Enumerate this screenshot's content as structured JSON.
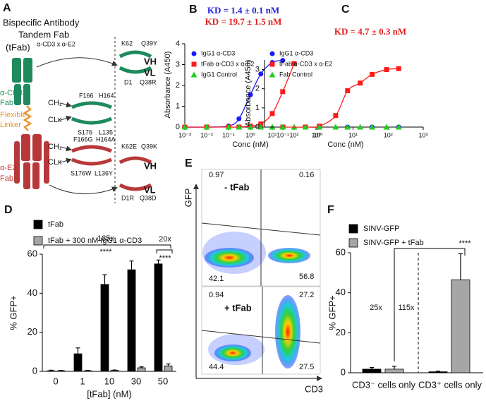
{
  "figure_a": {
    "panel": "A",
    "title": [
      "Bispecific Antibody",
      "Tandem Fab",
      "(tFab)"
    ],
    "title_superscript": "α-CD3 x α-E2",
    "cd3_fab": [
      "α-CD3",
      "Fab"
    ],
    "linker": [
      "Flexible",
      "Linker"
    ],
    "e2_fab": [
      "α-E2",
      "Fab"
    ],
    "wt_constant": {
      "ch1": "CH₁",
      "cl": "CLκ",
      "residues": [
        "F166",
        "H164",
        "S176",
        "L135"
      ]
    },
    "mut_constant": {
      "ch1": "CH₁",
      "cl": "CLκ",
      "residues": [
        "F166G",
        "H164A",
        "S176W",
        "L136Y"
      ]
    },
    "wt_variable": {
      "vh": "VH",
      "vl": "VL",
      "residues": [
        "K62",
        "Q39Y",
        "D1",
        "Q38R"
      ]
    },
    "mut_variable": {
      "vh": "VH",
      "vl": "VL",
      "residues": [
        "K62E",
        "Q39K",
        "D1R",
        "Q38D"
      ]
    }
  },
  "flow_e": {
    "panel": "E",
    "y_axis": "GFP",
    "x_axis": "CD3",
    "plots": [
      {
        "label": "- tFab",
        "quadrants": [
          0.97,
          0.16,
          42.1,
          56.8
        ]
      },
      {
        "label": "+ tFab",
        "quadrants": [
          0.94,
          27.2,
          44.4,
          27.5
        ]
      }
    ]
  },
  "chart_data": [
    {
      "type": "scatter",
      "panel": "B",
      "annotations": [
        {
          "text": "KD = 1.4 ± 0.1 nM",
          "color": "#2222dd"
        },
        {
          "text": "KD = 19.7 ± 1.5 nM",
          "color": "#e02020"
        }
      ],
      "xlabel": "Conc (nM)",
      "ylabel": "Absorbance (A450)",
      "xscale": "log",
      "xlim": [
        0.001,
        1000
      ],
      "xticks": [
        {
          "value": 0.001,
          "label": "10⁻³"
        },
        {
          "value": 0.01,
          "label": "10⁻²"
        },
        {
          "value": 0.1,
          "label": "10⁻¹"
        },
        {
          "value": 1,
          "label": "10⁰"
        },
        {
          "value": 10,
          "label": "10¹"
        },
        {
          "value": 100,
          "label": "10²"
        },
        {
          "value": 1000,
          "label": "10³"
        }
      ],
      "ylim": [
        0,
        4
      ],
      "yticks": [
        0,
        1,
        2,
        3,
        4
      ],
      "x": [
        0.001,
        0.01,
        0.1,
        0.3,
        1,
        3,
        10,
        30,
        100
      ],
      "series": [
        {
          "name": "IgG1 α-CD3",
          "color": "#1a1aff",
          "marker": "circle",
          "fit": true,
          "values": [
            0,
            0,
            0.05,
            0.4,
            1.55,
            2.55,
            3.1,
            3.2,
            null
          ]
        },
        {
          "name": "tFab α-CD3 x α-E2",
          "color": "#ff1a1a",
          "marker": "square",
          "fit": true,
          "values": [
            0,
            0,
            0,
            0,
            0.05,
            0.15,
            0.65,
            1.7,
            3.05
          ]
        },
        {
          "name": "IgG1 Control",
          "color": "#22cc22",
          "marker": "triangle",
          "fit": false,
          "values": [
            0,
            0,
            0,
            0,
            0,
            0,
            0,
            0,
            0
          ]
        }
      ]
    },
    {
      "type": "scatter",
      "panel": "C",
      "annotations": [
        {
          "text": "KD = 4.7 ± 0.3 nM",
          "color": "#e02020"
        }
      ],
      "xlabel": "Conc (nM)",
      "ylabel": "Absorbance (A450)",
      "xscale": "log",
      "xlim": [
        0.03,
        1000
      ],
      "xticks": [
        {
          "value": 0.1,
          "label": "10⁻¹"
        },
        {
          "value": 1,
          "label": "10⁰"
        },
        {
          "value": 10,
          "label": "10¹"
        },
        {
          "value": 100,
          "label": "10²"
        },
        {
          "value": 1000,
          "label": "10³"
        }
      ],
      "ylim": [
        0,
        3.5
      ],
      "yticks": [
        0,
        1,
        2,
        3
      ],
      "x": [
        0.1,
        0.44,
        1.1,
        3.2,
        7,
        16,
        35,
        90,
        200
      ],
      "series": [
        {
          "name": "IgG1 α-CD3",
          "color": "#1a1aff",
          "marker": "circle",
          "fit": false,
          "values": [
            0,
            null,
            0,
            null,
            0,
            null,
            0,
            null,
            0
          ]
        },
        {
          "name": "tFab α-CD3 x α-E2",
          "color": "#ff1a1a",
          "marker": "square",
          "fit": true,
          "values": [
            0,
            0,
            0.05,
            0.6,
            1.9,
            2.3,
            2.75,
            3.0,
            3.05
          ]
        },
        {
          "name": "Fab Control",
          "color": "#22cc22",
          "marker": "triangle",
          "fit": false,
          "values": [
            0,
            0,
            0,
            0,
            0,
            0,
            0,
            0,
            0
          ]
        }
      ]
    },
    {
      "type": "bar",
      "panel": "D",
      "xlabel": "[tFab] (nM)",
      "ylabel": "% GFP+",
      "categories": [
        "0",
        "1",
        "10",
        "30",
        "50"
      ],
      "ylim": [
        0,
        60
      ],
      "yticks": [
        0,
        20,
        40,
        60
      ],
      "annotations": [
        "185x",
        "****",
        "20x",
        "****"
      ],
      "series": [
        {
          "name": "tFab",
          "color": "#000000",
          "values": [
            0.3,
            9,
            44.5,
            52,
            55
          ],
          "errors": [
            0.3,
            3,
            5,
            4.5,
            2
          ]
        },
        {
          "name": "tFab + 300 nM IgG1 α-CD3",
          "color": "#a6a6a6",
          "values": [
            0.3,
            0.3,
            0.5,
            1.8,
            2.8
          ],
          "errors": [
            0.2,
            0.2,
            0.2,
            0.5,
            1
          ]
        }
      ]
    },
    {
      "type": "bar",
      "panel": "F",
      "ylabel": "% GFP+",
      "categories": [
        "CD3⁻ cells only",
        "CD3⁺ cells only"
      ],
      "ylim": [
        0,
        60
      ],
      "yticks": [
        0,
        20,
        40,
        60
      ],
      "annotations": [
        "25x",
        "115x",
        "****"
      ],
      "series": [
        {
          "name": "SINV-GFP",
          "color": "#000000",
          "values": [
            1.8,
            0.5
          ],
          "errors": [
            0.8,
            0.3
          ]
        },
        {
          "name": "SINV-GFP + tFab",
          "color": "#a6a6a6",
          "values": [
            1.8,
            46.5
          ],
          "errors": [
            1.5,
            13
          ]
        }
      ]
    }
  ]
}
